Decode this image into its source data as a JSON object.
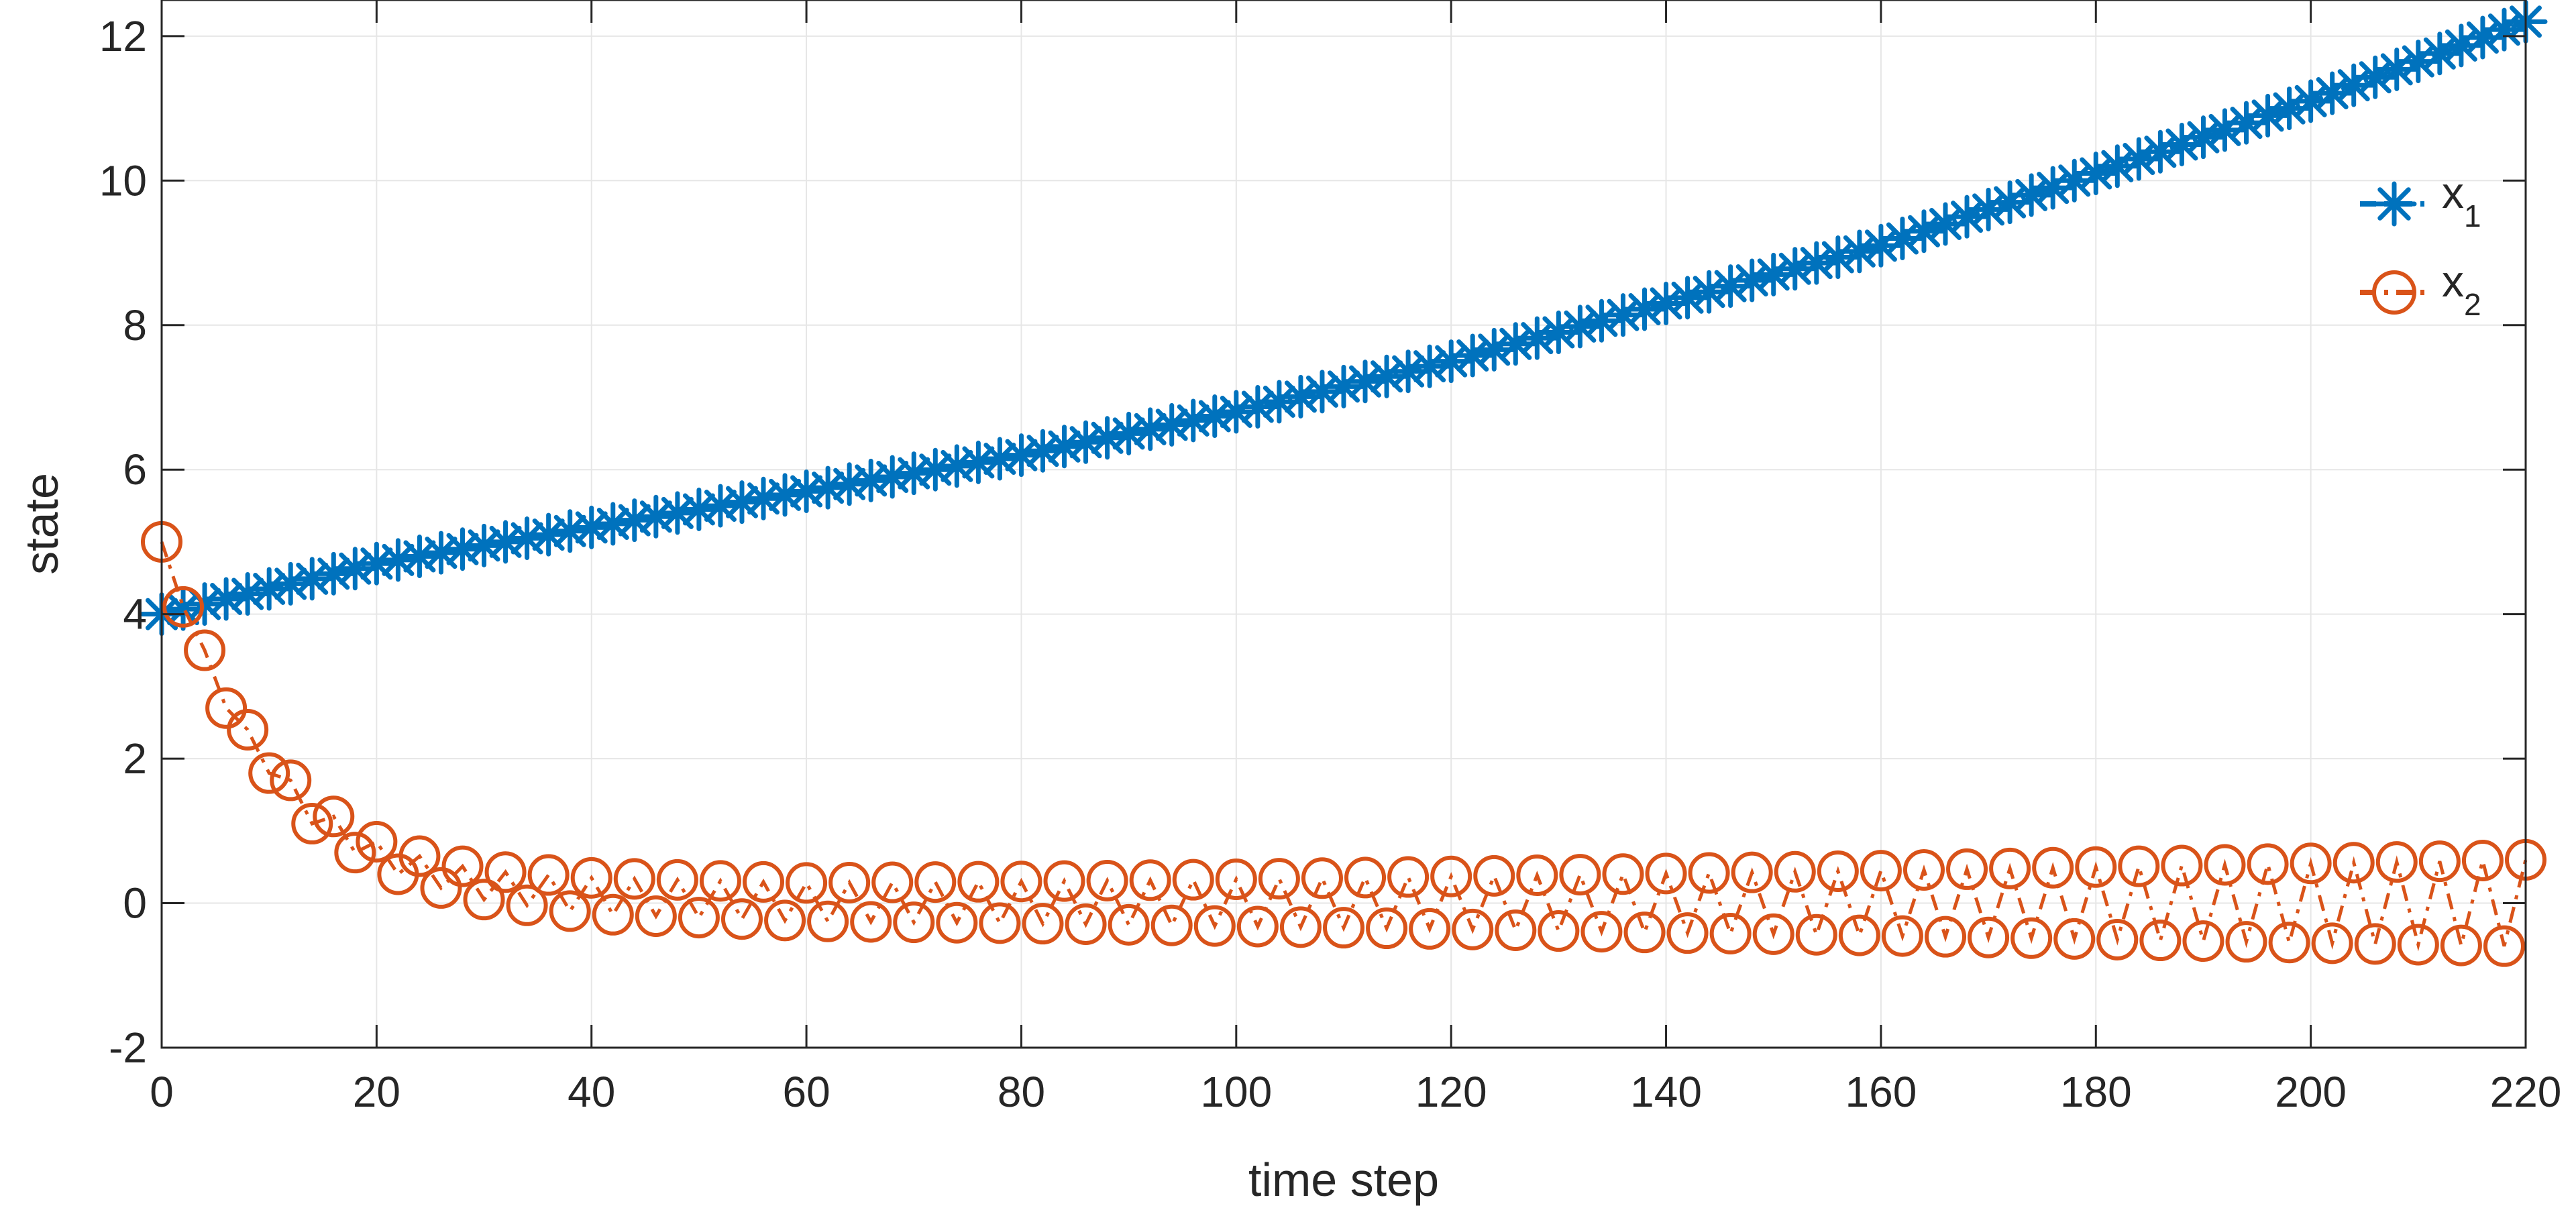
{
  "chart_data": {
    "type": "line",
    "xlabel": "time step",
    "ylabel": "state",
    "xlim": [
      0,
      220
    ],
    "ylim": [
      -2,
      12.5
    ],
    "x_ticks": [
      0,
      20,
      40,
      60,
      80,
      100,
      120,
      140,
      160,
      180,
      200,
      220
    ],
    "y_ticks": [
      -2,
      0,
      2,
      4,
      6,
      8,
      10,
      12
    ],
    "grid": true,
    "legend_position": "top-right",
    "x_step": 2,
    "series": [
      {
        "name": "x1",
        "legend_main": "x",
        "legend_sub": "1",
        "color": "#0072BD",
        "marker": "asterisk",
        "line_style": "dash-dot",
        "x": [
          0,
          20,
          40,
          60,
          80,
          100,
          120,
          140,
          160,
          180,
          200,
          220
        ],
        "y": [
          4.0,
          4.7,
          5.2,
          5.7,
          6.2,
          6.8,
          7.5,
          8.3,
          9.1,
          10.1,
          11.1,
          12.2
        ]
      },
      {
        "name": "x2",
        "legend_main": "x",
        "legend_sub": "2",
        "color": "#D95319",
        "marker": "circle",
        "line_style": "dash-dot",
        "oscillating": true,
        "x": [
          0,
          1,
          2,
          4,
          6,
          8,
          10,
          12,
          14,
          16,
          18,
          20,
          25,
          30,
          40,
          60,
          80,
          100,
          120,
          140,
          160,
          180,
          200,
          220
        ],
        "upper": [
          5.0,
          4.6,
          4.2,
          3.5,
          2.9,
          2.4,
          2.0,
          1.7,
          1.4,
          1.2,
          1.0,
          0.85,
          0.6,
          0.45,
          0.35,
          0.28,
          0.3,
          0.33,
          0.37,
          0.41,
          0.45,
          0.5,
          0.55,
          0.6
        ],
        "lower": [
          5.0,
          4.4,
          4.1,
          3.4,
          2.7,
          2.2,
          1.8,
          1.4,
          1.1,
          0.9,
          0.7,
          0.5,
          0.25,
          0.05,
          -0.15,
          -0.25,
          -0.28,
          -0.32,
          -0.36,
          -0.41,
          -0.45,
          -0.5,
          -0.55,
          -0.6
        ]
      }
    ]
  }
}
